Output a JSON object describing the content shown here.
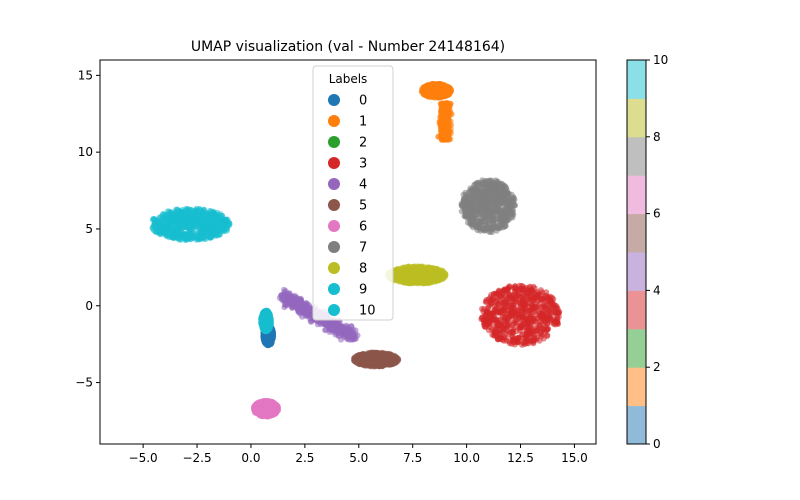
{
  "chart_data": {
    "type": "scatter",
    "title": "UMAP visualization (val - Number 24148164)",
    "xlabel": "",
    "ylabel": "",
    "xlim": [
      -7,
      16
    ],
    "ylim": [
      -9,
      16
    ],
    "xticks": [
      -5.0,
      -2.5,
      0.0,
      2.5,
      5.0,
      7.5,
      10.0,
      12.5,
      15.0
    ],
    "xtick_labels": [
      "−5.0",
      "−2.5",
      "0.0",
      "2.5",
      "5.0",
      "7.5",
      "10.0",
      "12.5",
      "15.0"
    ],
    "yticks": [
      -5,
      0,
      5,
      10,
      15
    ],
    "ytick_labels": [
      "−5",
      "0",
      "5",
      "10",
      "15"
    ],
    "grid": false,
    "legend": {
      "title": "Labels",
      "placement": "top-center",
      "entries": [
        "0",
        "1",
        "2",
        "3",
        "4",
        "5",
        "6",
        "7",
        "8",
        "9",
        "10"
      ]
    },
    "colors": [
      "#1f77b4",
      "#ff7f0e",
      "#2ca02c",
      "#d62728",
      "#9467bd",
      "#8c564b",
      "#e377c2",
      "#7f7f7f",
      "#bcbd22",
      "#17becf",
      "#17becf"
    ],
    "colorbar": {
      "ticks": [
        0,
        2,
        4,
        6,
        8,
        10
      ],
      "range": [
        0,
        10
      ],
      "colors": [
        "#8fbbd9",
        "#ffbf86",
        "#95cf95",
        "#eb9394",
        "#c9b3de",
        "#c5aaa5",
        "#f1bbe0",
        "#bfbfbf",
        "#dddd90",
        "#8bdfe7"
      ]
    },
    "clusters": [
      {
        "label": "9",
        "center": [
          -2.8,
          5.3
        ],
        "spread": [
          1.6,
          0.9
        ],
        "shape": "blob"
      },
      {
        "label": "3",
        "center": [
          12.5,
          -0.6
        ],
        "spread": [
          1.6,
          1.7
        ],
        "shape": "blob"
      },
      {
        "label": "7",
        "center": [
          11.0,
          6.5
        ],
        "spread": [
          1.1,
          1.5
        ],
        "shape": "blob"
      },
      {
        "label": "1",
        "center": [
          8.6,
          14.0
        ],
        "spread": [
          0.6,
          0.4
        ],
        "shape": "blob"
      },
      {
        "label": "1",
        "center": [
          9.0,
          12.0
        ],
        "spread": [
          0.1,
          1.2
        ],
        "shape": "stem"
      },
      {
        "label": "8",
        "center": [
          7.7,
          2.0
        ],
        "spread": [
          1.2,
          0.5
        ],
        "shape": "blob"
      },
      {
        "label": "6",
        "center": [
          0.7,
          -6.7
        ],
        "spread": [
          0.5,
          0.45
        ],
        "shape": "blob"
      },
      {
        "label": "5",
        "center": [
          5.8,
          -3.5
        ],
        "spread": [
          0.9,
          0.4
        ],
        "shape": "blob"
      },
      {
        "label": "4",
        "center": [
          3.0,
          -0.6
        ],
        "spread": [
          1.2,
          0.8
        ],
        "shape": "arc"
      },
      {
        "label": "0",
        "center": [
          0.8,
          -1.9
        ],
        "spread": [
          0.2,
          0.6
        ],
        "shape": "blob"
      },
      {
        "label": "10",
        "center": [
          0.7,
          -1.0
        ],
        "spread": [
          0.2,
          0.6
        ],
        "shape": "blob"
      }
    ]
  }
}
